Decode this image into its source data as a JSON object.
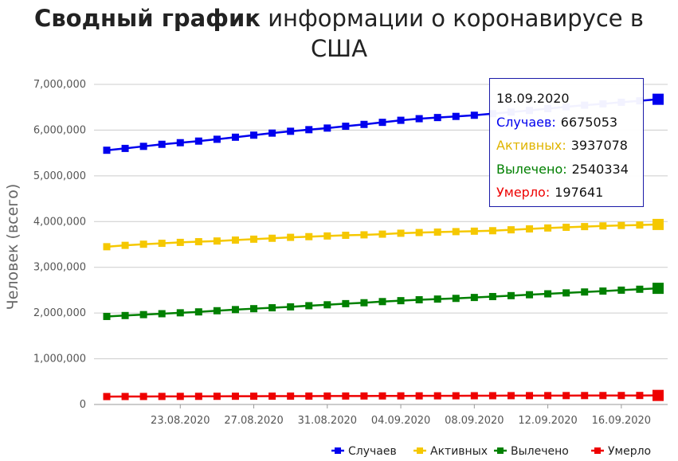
{
  "title": {
    "bold": "Сводный график",
    "rest_line1": "информации о коронавирусе в",
    "line2": "США"
  },
  "chart_data": {
    "type": "line",
    "x": [
      "19.08.2020",
      "20.08.2020",
      "21.08.2020",
      "22.08.2020",
      "23.08.2020",
      "24.08.2020",
      "25.08.2020",
      "26.08.2020",
      "27.08.2020",
      "28.08.2020",
      "29.08.2020",
      "30.08.2020",
      "31.08.2020",
      "01.09.2020",
      "02.09.2020",
      "03.09.2020",
      "04.09.2020",
      "05.09.2020",
      "06.09.2020",
      "07.09.2020",
      "08.09.2020",
      "09.09.2020",
      "10.09.2020",
      "11.09.2020",
      "12.09.2020",
      "13.09.2020",
      "14.09.2020",
      "15.09.2020",
      "16.09.2020",
      "17.09.2020",
      "18.09.2020"
    ],
    "x_tick_labels": [
      "23.08.2020",
      "27.08.2020",
      "31.08.2020",
      "04.09.2020",
      "08.09.2020",
      "12.09.2020",
      "16.09.2020"
    ],
    "ylabel": "Человек (всего)",
    "ylim": [
      0,
      7000000
    ],
    "y_tick_labels": [
      "0",
      "1,000,000",
      "2,000,000",
      "3,000,000",
      "4,000,000",
      "5,000,000",
      "6,000,000",
      "7,000,000"
    ],
    "grid": true,
    "legend_position": "bottom-right",
    "series": [
      {
        "name": "Случаев",
        "color": "#0000ee",
        "values": [
          5560000,
          5600000,
          5645000,
          5690000,
          5725000,
          5760000,
          5800000,
          5845000,
          5890000,
          5935000,
          5975000,
          6010000,
          6045000,
          6085000,
          6125000,
          6170000,
          6215000,
          6250000,
          6275000,
          6300000,
          6325000,
          6360000,
          6395000,
          6430000,
          6470000,
          6510000,
          6545000,
          6575000,
          6610000,
          6640000,
          6675053
        ]
      },
      {
        "name": "Активных",
        "color": "#f5c800",
        "values": [
          3450000,
          3480000,
          3505000,
          3525000,
          3545000,
          3560000,
          3575000,
          3595000,
          3615000,
          3635000,
          3655000,
          3670000,
          3685000,
          3700000,
          3710000,
          3725000,
          3745000,
          3760000,
          3770000,
          3780000,
          3790000,
          3800000,
          3820000,
          3840000,
          3860000,
          3875000,
          3890000,
          3905000,
          3915000,
          3925000,
          3937078
        ]
      },
      {
        "name": "Вылечено",
        "color": "#008000",
        "values": [
          1925000,
          1945000,
          1965000,
          1985000,
          2005000,
          2025000,
          2050000,
          2075000,
          2095000,
          2115000,
          2135000,
          2160000,
          2180000,
          2205000,
          2225000,
          2250000,
          2270000,
          2290000,
          2305000,
          2320000,
          2340000,
          2360000,
          2380000,
          2400000,
          2420000,
          2440000,
          2460000,
          2480000,
          2500000,
          2520000,
          2540334
        ]
      },
      {
        "name": "Умерло",
        "color": "#ee0000",
        "values": [
          173000,
          174000,
          175000,
          176000,
          177000,
          178000,
          179000,
          180000,
          181000,
          182000,
          183000,
          183500,
          184000,
          185000,
          186000,
          187000,
          188000,
          188500,
          189000,
          190000,
          191000,
          192000,
          193000,
          193500,
          194000,
          194500,
          195000,
          195500,
          196000,
          196800,
          197641
        ]
      }
    ]
  },
  "tooltip": {
    "date": "18.09.2020",
    "rows": [
      {
        "label": "Случаев:",
        "value": "6675053",
        "color": "#0000ee"
      },
      {
        "label": "Активных:",
        "value": "3937078",
        "color": "#e0b400"
      },
      {
        "label": "Вылечено:",
        "value": "2540334",
        "color": "#008000"
      },
      {
        "label": "Умерло:",
        "value": "197641",
        "color": "#ee0000"
      }
    ]
  }
}
